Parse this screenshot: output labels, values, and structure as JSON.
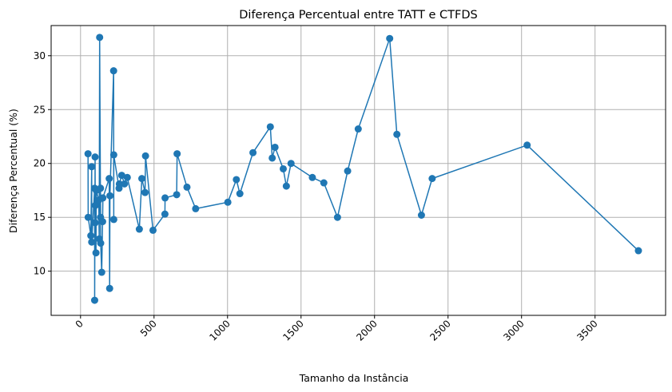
{
  "chart_data": {
    "type": "line",
    "title": "Diferença Percentual entre TATT e CTFDS",
    "xlabel": "Tamanho da Instância",
    "ylabel": "Diferença Percentual (%)",
    "xlim": [
      -200,
      3980
    ],
    "ylim": [
      5.9,
      32.8
    ],
    "xticks": [
      0,
      500,
      1000,
      1500,
      2000,
      2500,
      3000,
      3500
    ],
    "xtick_labels": [
      "0",
      "500",
      "1000",
      "1500",
      "2000",
      "2500",
      "3000",
      "3500"
    ],
    "xtick_rotation": 45,
    "yticks": [
      10,
      15,
      20,
      25,
      30
    ],
    "ytick_labels": [
      "10",
      "15",
      "20",
      "25",
      "30"
    ],
    "grid": true,
    "marker": "circle",
    "color": "#1f77b4",
    "series": [
      {
        "name": "Diferença Percentual",
        "x": [
          51,
          52,
          70,
          76,
          76,
          96,
          96,
          99,
          100,
          101,
          105,
          107,
          124,
          127,
          130,
          136,
          136,
          137,
          144,
          150,
          152,
          195,
          198,
          200,
          225,
          226,
          226,
          262,
          264,
          280,
          299,
          318,
          400,
          417,
          439,
          442,
          493,
          574,
          575,
          654,
          657,
          724,
          783,
          1002,
          1060,
          1084,
          1173,
          1291,
          1304,
          1323,
          1379,
          1400,
          1432,
          1577,
          1655,
          1748,
          1817,
          1889,
          2103,
          2152,
          2319,
          2392,
          3038,
          3795
        ],
        "y": [
          20.9,
          15.0,
          13.3,
          19.7,
          12.7,
          17.7,
          7.3,
          20.6,
          14.5,
          16.1,
          11.7,
          17.5,
          16.6,
          13.0,
          31.7,
          15.0,
          17.7,
          12.6,
          9.9,
          14.6,
          16.8,
          18.6,
          8.4,
          17.0,
          28.6,
          14.8,
          20.8,
          17.7,
          18.1,
          18.9,
          18.1,
          18.7,
          13.9,
          18.6,
          17.3,
          20.7,
          13.8,
          15.3,
          16.8,
          17.1,
          20.9,
          17.8,
          15.8,
          16.4,
          18.5,
          17.2,
          21.0,
          23.4,
          20.5,
          21.5,
          19.5,
          17.9,
          20.0,
          18.7,
          18.2,
          15.0,
          19.3,
          23.2,
          31.6,
          22.7,
          15.2,
          18.6,
          21.7,
          11.9
        ]
      }
    ]
  }
}
